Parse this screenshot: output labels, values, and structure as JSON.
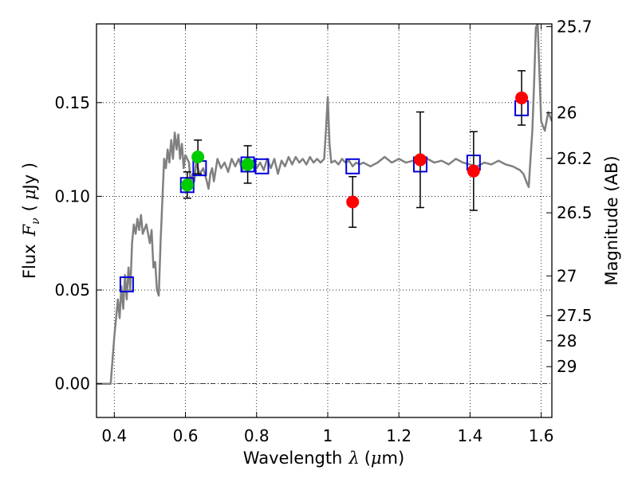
{
  "chart_data": {
    "type": "scatter",
    "xlabel": "Wavelength",
    "xlabel_symbol": "λ",
    "xlabel_unit_open": "(",
    "xlabel_unit_symbol": "μ",
    "xlabel_unit_rest": "m)",
    "ylabel": "Flux",
    "ylabel_symbol": "F",
    "ylabel_subscript": "ν",
    "ylabel_unit_open": "(",
    "ylabel_unit_symbol": "μ",
    "ylabel_unit_rest": "Jy )",
    "y2label": "Magnitude (AB)",
    "xlim": [
      0.35,
      1.63
    ],
    "ylim": [
      -0.018,
      0.192
    ],
    "grid": true,
    "x_ticks": [
      0.4,
      0.6,
      0.8,
      1.0,
      1.2,
      1.4,
      1.6
    ],
    "x_tick_labels": [
      "0.4",
      "0.6",
      "0.8",
      "1",
      "1.2",
      "1.4",
      "1.6"
    ],
    "y_ticks": [
      0.0,
      0.05,
      0.1,
      0.15
    ],
    "y_tick_labels": [
      "0.00",
      "0.05",
      "0.10",
      "0.15"
    ],
    "y2_ticks": [
      {
        "label": "25.7",
        "value": 25.7
      },
      {
        "label": "26",
        "value": 26.0
      },
      {
        "label": "26.2",
        "value": 26.2
      },
      {
        "label": "26.5",
        "value": 26.5
      },
      {
        "label": "27",
        "value": 27.0
      },
      {
        "label": "27.5",
        "value": 27.5
      },
      {
        "label": "28",
        "value": 28.0
      },
      {
        "label": "29",
        "value": 29.0
      }
    ],
    "zero_line": 0.0,
    "colors": {
      "model": "#808080",
      "model_points": "#0000dd",
      "green_points": "#00cc00",
      "red_points": "#ff0000",
      "errorbar": "#000000",
      "grid": "#000000"
    },
    "model_spectrum": [
      [
        0.35,
        0.0
      ],
      [
        0.39,
        0.0
      ],
      [
        0.4,
        0.025
      ],
      [
        0.41,
        0.045
      ],
      [
        0.415,
        0.035
      ],
      [
        0.42,
        0.052
      ],
      [
        0.425,
        0.04
      ],
      [
        0.43,
        0.058
      ],
      [
        0.435,
        0.045
      ],
      [
        0.44,
        0.062
      ],
      [
        0.445,
        0.05
      ],
      [
        0.45,
        0.075
      ],
      [
        0.455,
        0.085
      ],
      [
        0.46,
        0.08
      ],
      [
        0.465,
        0.088
      ],
      [
        0.47,
        0.082
      ],
      [
        0.475,
        0.09
      ],
      [
        0.48,
        0.08
      ],
      [
        0.49,
        0.085
      ],
      [
        0.5,
        0.075
      ],
      [
        0.505,
        0.082
      ],
      [
        0.51,
        0.062
      ],
      [
        0.515,
        0.065
      ],
      [
        0.52,
        0.05
      ],
      [
        0.525,
        0.047
      ],
      [
        0.53,
        0.075
      ],
      [
        0.54,
        0.12
      ],
      [
        0.545,
        0.115
      ],
      [
        0.55,
        0.125
      ],
      [
        0.555,
        0.118
      ],
      [
        0.56,
        0.13
      ],
      [
        0.565,
        0.12
      ],
      [
        0.57,
        0.134
      ],
      [
        0.575,
        0.125
      ],
      [
        0.58,
        0.133
      ],
      [
        0.585,
        0.12
      ],
      [
        0.59,
        0.128
      ],
      [
        0.595,
        0.115
      ],
      [
        0.6,
        0.122
      ],
      [
        0.61,
        0.118
      ],
      [
        0.615,
        0.105
      ],
      [
        0.62,
        0.112
      ],
      [
        0.625,
        0.108
      ],
      [
        0.63,
        0.118
      ],
      [
        0.64,
        0.112
      ],
      [
        0.65,
        0.115
      ],
      [
        0.66,
        0.108
      ],
      [
        0.665,
        0.104
      ],
      [
        0.67,
        0.112
      ],
      [
        0.675,
        0.115
      ],
      [
        0.68,
        0.108
      ],
      [
        0.69,
        0.12
      ],
      [
        0.7,
        0.115
      ],
      [
        0.71,
        0.118
      ],
      [
        0.72,
        0.113
      ],
      [
        0.73,
        0.12
      ],
      [
        0.74,
        0.116
      ],
      [
        0.75,
        0.12
      ],
      [
        0.76,
        0.114
      ],
      [
        0.77,
        0.118
      ],
      [
        0.78,
        0.116
      ],
      [
        0.79,
        0.119
      ],
      [
        0.8,
        0.115
      ],
      [
        0.81,
        0.118
      ],
      [
        0.82,
        0.114
      ],
      [
        0.83,
        0.12
      ],
      [
        0.84,
        0.115
      ],
      [
        0.85,
        0.12
      ],
      [
        0.86,
        0.112
      ],
      [
        0.87,
        0.119
      ],
      [
        0.88,
        0.116
      ],
      [
        0.89,
        0.121
      ],
      [
        0.9,
        0.117
      ],
      [
        0.91,
        0.121
      ],
      [
        0.92,
        0.118
      ],
      [
        0.93,
        0.12
      ],
      [
        0.94,
        0.117
      ],
      [
        0.95,
        0.121
      ],
      [
        0.96,
        0.118
      ],
      [
        0.97,
        0.12
      ],
      [
        0.98,
        0.118
      ],
      [
        0.99,
        0.12
      ],
      [
        0.995,
        0.135
      ],
      [
        1.0,
        0.153
      ],
      [
        1.005,
        0.128
      ],
      [
        1.01,
        0.118
      ],
      [
        1.02,
        0.119
      ],
      [
        1.03,
        0.117
      ],
      [
        1.04,
        0.12
      ],
      [
        1.05,
        0.118
      ],
      [
        1.06,
        0.119
      ],
      [
        1.07,
        0.116
      ],
      [
        1.08,
        0.118
      ],
      [
        1.09,
        0.117
      ],
      [
        1.1,
        0.118
      ],
      [
        1.12,
        0.116
      ],
      [
        1.14,
        0.118
      ],
      [
        1.16,
        0.121
      ],
      [
        1.18,
        0.118
      ],
      [
        1.2,
        0.12
      ],
      [
        1.22,
        0.118
      ],
      [
        1.24,
        0.119
      ],
      [
        1.26,
        0.117
      ],
      [
        1.28,
        0.12
      ],
      [
        1.3,
        0.118
      ],
      [
        1.32,
        0.119
      ],
      [
        1.34,
        0.117
      ],
      [
        1.36,
        0.12
      ],
      [
        1.38,
        0.118
      ],
      [
        1.4,
        0.117
      ],
      [
        1.42,
        0.116
      ],
      [
        1.44,
        0.118
      ],
      [
        1.46,
        0.117
      ],
      [
        1.48,
        0.119
      ],
      [
        1.5,
        0.117
      ],
      [
        1.52,
        0.116
      ],
      [
        1.54,
        0.114
      ],
      [
        1.55,
        0.112
      ],
      [
        1.56,
        0.107
      ],
      [
        1.565,
        0.105
      ],
      [
        1.57,
        0.12
      ],
      [
        1.575,
        0.135
      ],
      [
        1.58,
        0.16
      ],
      [
        1.585,
        0.19
      ],
      [
        1.59,
        0.192
      ],
      [
        1.6,
        0.14
      ],
      [
        1.61,
        0.135
      ],
      [
        1.62,
        0.145
      ],
      [
        1.63,
        0.14
      ]
    ],
    "model_points": [
      {
        "x": 0.435,
        "y": 0.053
      },
      {
        "x": 0.605,
        "y": 0.106
      },
      {
        "x": 0.64,
        "y": 0.115
      },
      {
        "x": 0.775,
        "y": 0.117
      },
      {
        "x": 0.815,
        "y": 0.116
      },
      {
        "x": 1.07,
        "y": 0.116
      },
      {
        "x": 1.26,
        "y": 0.117
      },
      {
        "x": 1.41,
        "y": 0.118
      },
      {
        "x": 1.545,
        "y": 0.147
      }
    ],
    "green_points": [
      {
        "x": 0.605,
        "y": 0.106,
        "yerr": 0.007
      },
      {
        "x": 0.635,
        "y": 0.121,
        "yerr": 0.009
      },
      {
        "x": 0.775,
        "y": 0.117,
        "yerr": 0.01
      }
    ],
    "red_points": [
      {
        "x": 1.07,
        "y": 0.097,
        "yerr": 0.0135
      },
      {
        "x": 1.26,
        "y": 0.1195,
        "yerr": 0.0255
      },
      {
        "x": 1.41,
        "y": 0.1135,
        "yerr": 0.021
      },
      {
        "x": 1.545,
        "y": 0.1525,
        "yerr": 0.0145
      }
    ]
  }
}
